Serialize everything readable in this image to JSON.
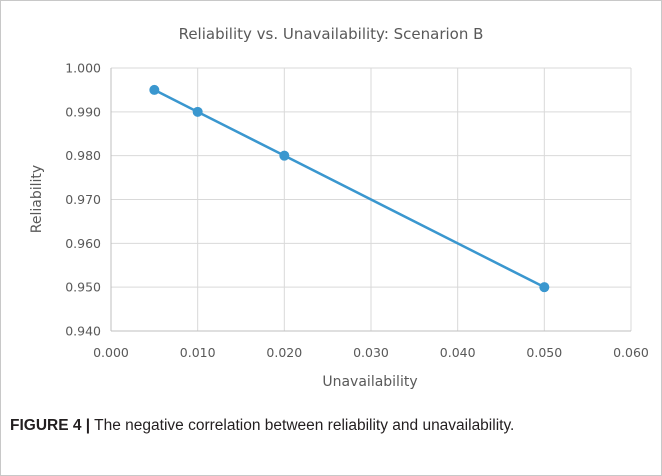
{
  "figure": {
    "caption_label": "FIGURE 4 |",
    "caption_text": " The negative correlation between reliability and unavailability."
  },
  "chart_data": {
    "type": "line",
    "title": "Reliability vs. Unavailability: Scenarion B",
    "xlabel": "Unavailability",
    "ylabel": "Reliability",
    "xlim": [
      0.0,
      0.06
    ],
    "ylim": [
      0.94,
      1.0
    ],
    "xticks": [
      "0.000",
      "0.010",
      "0.020",
      "0.030",
      "0.040",
      "0.050",
      "0.060"
    ],
    "yticks": [
      "0.940",
      "0.950",
      "0.960",
      "0.970",
      "0.980",
      "0.990",
      "1.000"
    ],
    "grid": true,
    "legend": "none",
    "series": [
      {
        "x": [
          0.005,
          0.01,
          0.02,
          0.05
        ],
        "y": [
          0.995,
          0.99,
          0.98,
          0.95
        ],
        "color": "#3a97cf"
      }
    ]
  }
}
